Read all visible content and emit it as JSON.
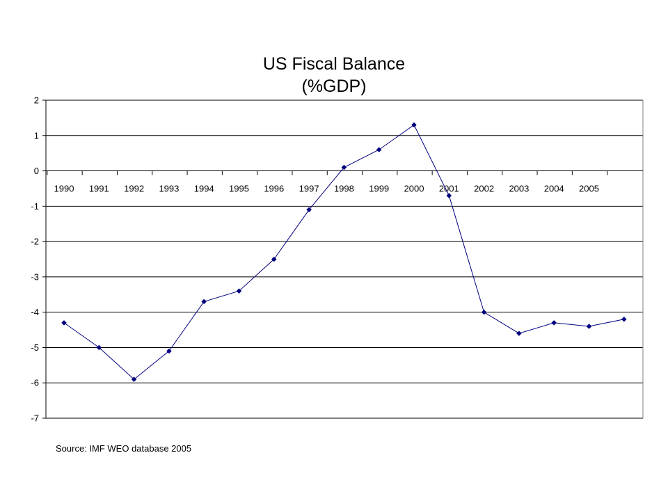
{
  "chart_data": {
    "type": "line",
    "title": "US Fiscal Balance",
    "subtitle": "(%GDP)",
    "x_tick_labels": [
      "1990",
      "1991",
      "1992",
      "1993",
      "1994",
      "1995",
      "1996",
      "1997",
      "1998",
      "1999",
      "2000",
      "2001",
      "2002",
      "2003",
      "2004",
      "2005"
    ],
    "y_tick_labels": [
      "2",
      "1",
      "0",
      "-1",
      "-2",
      "-3",
      "-4",
      "-5",
      "-6",
      "-7"
    ],
    "ylim": [
      -7,
      2
    ],
    "y_step": 1,
    "grid": "horizontal",
    "legend": "none",
    "series": [
      {
        "values": [
          -4.3,
          -5.0,
          -5.9,
          -5.1,
          -3.7,
          -3.4,
          -2.5,
          -1.1,
          0.1,
          0.6,
          1.3,
          -0.7,
          -4.0,
          -4.6,
          -4.3,
          -4.4,
          -4.2
        ],
        "color": "#00007f",
        "marker": "diamond"
      }
    ]
  },
  "source": "Source: IMF WEO database 2005"
}
